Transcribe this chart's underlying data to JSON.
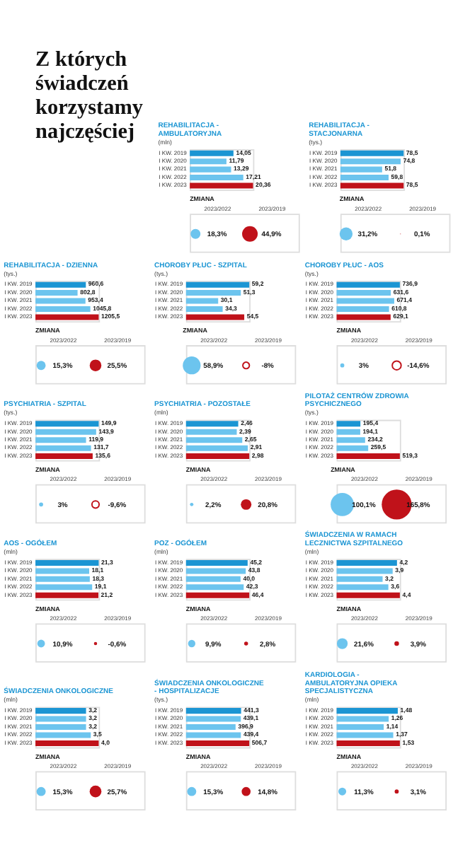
{
  "chart_data": [
    {
      "type": "other",
      "title": "Z których świadczeń korzystamy najczęściej"
    },
    {
      "type": "bar",
      "orientation": "horizontal",
      "title": "REHABILITACJA - AMBULATORYJNA",
      "subtitle": "(mln)",
      "categories": [
        "I KW. 2019",
        "I KW. 2020",
        "I KW. 2021",
        "I KW. 2022",
        "I KW. 2023"
      ],
      "values": [
        14.05,
        11.79,
        13.29,
        17.21,
        20.36
      ],
      "value_labels": [
        "14,05",
        "11,79",
        "13,29",
        "17,21",
        "20,36"
      ],
      "colors": [
        "#1b95d3",
        "#6cc4ee",
        "#6cc4ee",
        "#6cc4ee",
        "#c0121a"
      ]
    },
    {
      "type": "other",
      "title": "ZMIANA",
      "categories": [
        "2023/2022",
        "2023/2019"
      ],
      "values": [
        18.3,
        44.9
      ],
      "value_labels": [
        "18,3%",
        "44,9%"
      ],
      "colors": [
        "#6cc4ee",
        "#c0121a"
      ]
    },
    {
      "type": "bar",
      "orientation": "horizontal",
      "title": "REHABILITACJA - STACJONARNA",
      "subtitle": "(tys.)",
      "categories": [
        "I KW. 2019",
        "I KW. 2020",
        "I KW. 2021",
        "I KW. 2022",
        "I KW. 2023"
      ],
      "values": [
        78.5,
        74.8,
        51.8,
        59.8,
        78.5
      ],
      "value_labels": [
        "78,5",
        "74,8",
        "51,8",
        "59,8",
        "78,5"
      ],
      "colors": [
        "#1b95d3",
        "#6cc4ee",
        "#6cc4ee",
        "#6cc4ee",
        "#c0121a"
      ]
    },
    {
      "type": "other",
      "title": "ZMIANA",
      "categories": [
        "2023/2022",
        "2023/2019"
      ],
      "values": [
        31.2,
        0.1
      ],
      "value_labels": [
        "31,2%",
        "0,1%"
      ],
      "colors": [
        "#6cc4ee",
        "#c0121a"
      ]
    },
    {
      "type": "bar",
      "orientation": "horizontal",
      "title": "REHABILITACJA - DZIENNA",
      "subtitle": "(tys.)",
      "categories": [
        "I KW. 2019",
        "I KW. 2020",
        "I KW. 2021",
        "I KW. 2022",
        "I KW. 2023"
      ],
      "values": [
        960.6,
        802.8,
        953.4,
        1045.8,
        1205.5
      ],
      "value_labels": [
        "960,6",
        "802,8",
        "953,4",
        "1045,8",
        "1205,5"
      ],
      "colors": [
        "#1b95d3",
        "#6cc4ee",
        "#6cc4ee",
        "#6cc4ee",
        "#c0121a"
      ]
    },
    {
      "type": "other",
      "title": "ZMIANA",
      "categories": [
        "2023/2022",
        "2023/2019"
      ],
      "values": [
        15.3,
        25.5
      ],
      "value_labels": [
        "15,3%",
        "25,5%"
      ],
      "colors": [
        "#6cc4ee",
        "#c0121a"
      ]
    },
    {
      "type": "bar",
      "orientation": "horizontal",
      "title": "CHOROBY PŁUC - SZPITAL",
      "subtitle": "(tys.)",
      "categories": [
        "I KW. 2019",
        "I KW. 2020",
        "I KW. 2021",
        "I KW. 2022",
        "I KW. 2023"
      ],
      "values": [
        59.2,
        51.3,
        30.1,
        34.3,
        54.5
      ],
      "value_labels": [
        "59,2",
        "51,3",
        "30,1",
        "34,3",
        "54,5"
      ],
      "colors": [
        "#1b95d3",
        "#6cc4ee",
        "#6cc4ee",
        "#6cc4ee",
        "#c0121a"
      ]
    },
    {
      "type": "other",
      "title": "ZMIANA",
      "categories": [
        "2023/2022",
        "2023/2019"
      ],
      "values": [
        58.9,
        -8
      ],
      "value_labels": [
        "58,9%",
        "-8%"
      ],
      "colors": [
        "#6cc4ee",
        "#c0121a"
      ]
    },
    {
      "type": "bar",
      "orientation": "horizontal",
      "title": "CHOROBY PŁUC - AOS",
      "subtitle": "(tys.)",
      "categories": [
        "I KW. 2019",
        "I KW. 2020",
        "I KW. 2021",
        "I KW. 2022",
        "I KW. 2023"
      ],
      "values": [
        736.9,
        631.6,
        671.4,
        610.8,
        629.1
      ],
      "value_labels": [
        "736,9",
        "631,6",
        "671,4",
        "610,8",
        "629,1"
      ],
      "colors": [
        "#1b95d3",
        "#6cc4ee",
        "#6cc4ee",
        "#6cc4ee",
        "#c0121a"
      ]
    },
    {
      "type": "other",
      "title": "ZMIANA",
      "categories": [
        "2023/2022",
        "2023/2019"
      ],
      "values": [
        3,
        -14.6
      ],
      "value_labels": [
        "3%",
        "-14,6%"
      ],
      "colors": [
        "#6cc4ee",
        "#c0121a"
      ]
    },
    {
      "type": "bar",
      "orientation": "horizontal",
      "title": "PSYCHIATRIA - SZPITAL",
      "subtitle": "(tys.)",
      "categories": [
        "I KW. 2019",
        "I KW. 2020",
        "I KW. 2021",
        "I KW. 2022",
        "I KW. 2023"
      ],
      "values": [
        149.9,
        143.9,
        119.9,
        131.7,
        135.6
      ],
      "value_labels": [
        "149,9",
        "143,9",
        "119,9",
        "131,7",
        "135,6"
      ],
      "colors": [
        "#1b95d3",
        "#6cc4ee",
        "#6cc4ee",
        "#6cc4ee",
        "#c0121a"
      ]
    },
    {
      "type": "other",
      "title": "ZMIANA",
      "categories": [
        "2023/2022",
        "2023/2019"
      ],
      "values": [
        3,
        -9.6
      ],
      "value_labels": [
        "3%",
        "-9,6%"
      ],
      "colors": [
        "#6cc4ee",
        "#c0121a"
      ]
    },
    {
      "type": "bar",
      "orientation": "horizontal",
      "title": "PSYCHIATRIA - POZOSTAŁE",
      "subtitle": "(mln)",
      "categories": [
        "I KW. 2019",
        "I KW. 2020",
        "I KW. 2021",
        "I KW. 2022",
        "I KW. 2023"
      ],
      "values": [
        2.46,
        2.39,
        2.65,
        2.91,
        2.98
      ],
      "value_labels": [
        "2,46",
        "2,39",
        "2,65",
        "2,91",
        "2,98"
      ],
      "colors": [
        "#1b95d3",
        "#6cc4ee",
        "#6cc4ee",
        "#6cc4ee",
        "#c0121a"
      ]
    },
    {
      "type": "other",
      "title": "ZMIANA",
      "categories": [
        "2023/2022",
        "2023/2019"
      ],
      "values": [
        2.2,
        20.8
      ],
      "value_labels": [
        "2,2%",
        "20,8%"
      ],
      "colors": [
        "#6cc4ee",
        "#c0121a"
      ]
    },
    {
      "type": "bar",
      "orientation": "horizontal",
      "title": "PILOTAŻ CENTRÓW ZDROWIA PSYCHICZNEGO",
      "subtitle": "(tys.)",
      "categories": [
        "I KW. 2019",
        "I KW. 2020",
        "I KW. 2021",
        "I KW. 2022",
        "I KW. 2023"
      ],
      "values": [
        195.4,
        194.1,
        234.2,
        259.5,
        519.3
      ],
      "value_labels": [
        "195,4",
        "194,1",
        "234,2",
        "259,5",
        "519,3"
      ],
      "colors": [
        "#1b95d3",
        "#6cc4ee",
        "#6cc4ee",
        "#6cc4ee",
        "#c0121a"
      ]
    },
    {
      "type": "other",
      "title": "ZMIANA",
      "categories": [
        "2023/2022",
        "2023/2019"
      ],
      "values": [
        100.1,
        165.8
      ],
      "value_labels": [
        "100,1%",
        "165,8%"
      ],
      "colors": [
        "#6cc4ee",
        "#c0121a"
      ]
    },
    {
      "type": "bar",
      "orientation": "horizontal",
      "title": "AOS - OGÓŁEM",
      "subtitle": "(mln)",
      "categories": [
        "I KW. 2019",
        "I KW. 2020",
        "I KW. 2021",
        "I KW. 2022",
        "I KW. 2023"
      ],
      "values": [
        21.3,
        18.1,
        18.3,
        19.1,
        21.2
      ],
      "value_labels": [
        "21,3",
        "18,1",
        "18,3",
        "19,1",
        "21,2"
      ],
      "colors": [
        "#1b95d3",
        "#6cc4ee",
        "#6cc4ee",
        "#6cc4ee",
        "#c0121a"
      ]
    },
    {
      "type": "other",
      "title": "ZMIANA",
      "categories": [
        "2023/2022",
        "2023/2019"
      ],
      "values": [
        10.9,
        -0.6
      ],
      "value_labels": [
        "10,9%",
        "-0,6%"
      ],
      "colors": [
        "#6cc4ee",
        "#c0121a"
      ]
    },
    {
      "type": "bar",
      "orientation": "horizontal",
      "title": "POZ - OGÓŁEM",
      "subtitle": "(mln)",
      "categories": [
        "I KW. 2019",
        "I KW. 2020",
        "I KW. 2021",
        "I KW. 2022",
        "I KW. 2023"
      ],
      "values": [
        45.2,
        43.8,
        40.0,
        42.3,
        46.4
      ],
      "value_labels": [
        "45,2",
        "43,8",
        "40,0",
        "42,3",
        "46,4"
      ],
      "colors": [
        "#1b95d3",
        "#6cc4ee",
        "#6cc4ee",
        "#6cc4ee",
        "#c0121a"
      ]
    },
    {
      "type": "other",
      "title": "ZMIANA",
      "categories": [
        "2023/2022",
        "2023/2019"
      ],
      "values": [
        9.9,
        2.8
      ],
      "value_labels": [
        "9,9%",
        "2,8%"
      ],
      "colors": [
        "#6cc4ee",
        "#c0121a"
      ]
    },
    {
      "type": "bar",
      "orientation": "horizontal",
      "title": "ŚWIADCZENIA W RAMACH LECZNICTWA SZPITALNEGO",
      "subtitle": "(mln)",
      "categories": [
        "I KW. 2019",
        "I KW. 2020",
        "I KW. 2021",
        "I KW. 2022",
        "I KW. 2023"
      ],
      "values": [
        4.2,
        3.9,
        3.2,
        3.6,
        4.4
      ],
      "value_labels": [
        "4,2",
        "3,9",
        "3,2",
        "3,6",
        "4,4"
      ],
      "colors": [
        "#1b95d3",
        "#6cc4ee",
        "#6cc4ee",
        "#6cc4ee",
        "#c0121a"
      ]
    },
    {
      "type": "other",
      "title": "ZMIANA",
      "categories": [
        "2023/2022",
        "2023/2019"
      ],
      "values": [
        21.6,
        3.9
      ],
      "value_labels": [
        "21,6%",
        "3,9%"
      ],
      "colors": [
        "#6cc4ee",
        "#c0121a"
      ]
    },
    {
      "type": "bar",
      "orientation": "horizontal",
      "title": "ŚWIADCZENIA ONKOLOGICZNE",
      "subtitle": "(mln)",
      "categories": [
        "I KW. 2019",
        "I KW. 2020",
        "I KW. 2021",
        "I KW. 2022",
        "I KW. 2023"
      ],
      "values": [
        3.2,
        3.2,
        3.2,
        3.5,
        4.0
      ],
      "value_labels": [
        "3,2",
        "3,2",
        "3,2",
        "3,5",
        "4,0"
      ],
      "colors": [
        "#1b95d3",
        "#6cc4ee",
        "#6cc4ee",
        "#6cc4ee",
        "#c0121a"
      ]
    },
    {
      "type": "other",
      "title": "ZMIANA",
      "categories": [
        "2023/2022",
        "2023/2019"
      ],
      "values": [
        15.3,
        25.7
      ],
      "value_labels": [
        "15,3%",
        "25,7%"
      ],
      "colors": [
        "#6cc4ee",
        "#c0121a"
      ]
    },
    {
      "type": "bar",
      "orientation": "horizontal",
      "title": "ŚWIADCZENIA ONKOLOGICZNE - HOSPITALIZACJE",
      "subtitle": "(tys.)",
      "categories": [
        "I KW. 2019",
        "I KW. 2020",
        "I KW. 2021",
        "I KW. 2022",
        "I KW. 2023"
      ],
      "values": [
        441.3,
        439.1,
        396.9,
        439.4,
        506.7
      ],
      "value_labels": [
        "441,3",
        "439,1",
        "396,9",
        "439,4",
        "506,7"
      ],
      "colors": [
        "#1b95d3",
        "#6cc4ee",
        "#6cc4ee",
        "#6cc4ee",
        "#c0121a"
      ]
    },
    {
      "type": "other",
      "title": "ZMIANA",
      "categories": [
        "2023/2022",
        "2023/2019"
      ],
      "values": [
        15.3,
        14.8
      ],
      "value_labels": [
        "15,3%",
        "14,8%"
      ],
      "colors": [
        "#6cc4ee",
        "#c0121a"
      ]
    },
    {
      "type": "bar",
      "orientation": "horizontal",
      "title": "KARDIOLOGIA - AMBULATORYJNA OPIEKA SPECJALISTYCZNA",
      "subtitle": "(mln)",
      "categories": [
        "I KW. 2019",
        "I KW. 2020",
        "I KW. 2021",
        "I KW. 2022",
        "I KW. 2023"
      ],
      "values": [
        1.48,
        1.26,
        1.14,
        1.37,
        1.53
      ],
      "value_labels": [
        "1,48",
        "1,26",
        "1,14",
        "1,37",
        "1,53"
      ],
      "colors": [
        "#1b95d3",
        "#6cc4ee",
        "#6cc4ee",
        "#6cc4ee",
        "#c0121a"
      ]
    },
    {
      "type": "other",
      "title": "ZMIANA",
      "categories": [
        "2023/2022",
        "2023/2019"
      ],
      "values": [
        11.3,
        3.1
      ],
      "value_labels": [
        "11,3%",
        "3,1%"
      ],
      "colors": [
        "#6cc4ee",
        "#c0121a"
      ]
    }
  ]
}
